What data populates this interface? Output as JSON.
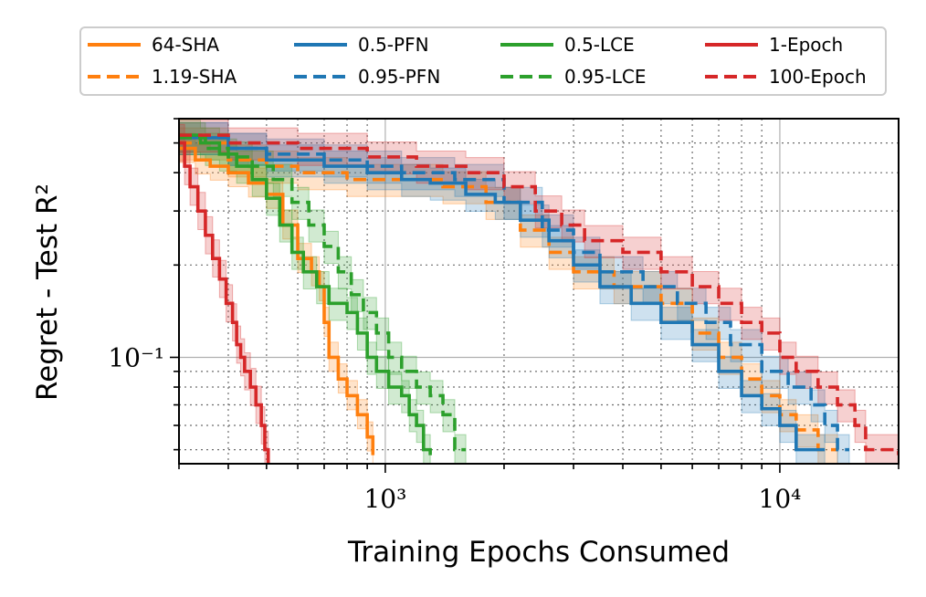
{
  "chart_data": {
    "type": "line",
    "xscale": "log",
    "yscale": "log",
    "xlabel": "Training Epochs Consumed",
    "ylabel": "Regret - Test R²",
    "xlim": [
      300,
      20000
    ],
    "ylim": [
      0.045,
      0.6
    ],
    "x_ticks": [
      {
        "value": 1000,
        "label": "10³"
      },
      {
        "value": 10000,
        "label": "10⁴"
      }
    ],
    "y_ticks": [
      {
        "value": 0.1,
        "label": "10⁻¹"
      }
    ],
    "legend": {
      "columns": 4,
      "placement": "top-center-outside"
    },
    "series": [
      {
        "name": "64-SHA",
        "color": "#ff7f0e",
        "dash": "solid",
        "points": [
          [
            300,
            0.48
          ],
          [
            330,
            0.44
          ],
          [
            360,
            0.42
          ],
          [
            400,
            0.4
          ],
          [
            450,
            0.37
          ],
          [
            500,
            0.34
          ],
          [
            550,
            0.27
          ],
          [
            600,
            0.21
          ],
          [
            650,
            0.19
          ],
          [
            680,
            0.17
          ],
          [
            700,
            0.13
          ],
          [
            720,
            0.1
          ],
          [
            760,
            0.085
          ],
          [
            800,
            0.075
          ],
          [
            850,
            0.065
          ],
          [
            900,
            0.055
          ],
          [
            930,
            0.048
          ]
        ],
        "band": [
          1.12,
          0.9
        ]
      },
      {
        "name": "1.19-SHA",
        "color": "#ff7f0e",
        "dash": "dashed",
        "points": [
          [
            300,
            0.5
          ],
          [
            400,
            0.44
          ],
          [
            500,
            0.42
          ],
          [
            600,
            0.4
          ],
          [
            800,
            0.38
          ],
          [
            1000,
            0.38
          ],
          [
            1400,
            0.36
          ],
          [
            1800,
            0.32
          ],
          [
            2200,
            0.26
          ],
          [
            2600,
            0.22
          ],
          [
            3000,
            0.19
          ],
          [
            3800,
            0.17
          ],
          [
            5000,
            0.15
          ],
          [
            6000,
            0.12
          ],
          [
            7000,
            0.1
          ],
          [
            8000,
            0.085
          ],
          [
            9000,
            0.075
          ],
          [
            10000,
            0.065
          ],
          [
            11000,
            0.058
          ],
          [
            12500,
            0.05
          ],
          [
            14000,
            0.05
          ]
        ],
        "band": [
          1.12,
          0.88
        ]
      },
      {
        "name": "0.5-PFN",
        "color": "#1f77b4",
        "dash": "solid",
        "points": [
          [
            300,
            0.52
          ],
          [
            400,
            0.48
          ],
          [
            500,
            0.44
          ],
          [
            700,
            0.42
          ],
          [
            900,
            0.4
          ],
          [
            1100,
            0.38
          ],
          [
            1300,
            0.37
          ],
          [
            1600,
            0.34
          ],
          [
            1900,
            0.32
          ],
          [
            2200,
            0.28
          ],
          [
            2600,
            0.24
          ],
          [
            3000,
            0.2
          ],
          [
            3500,
            0.17
          ],
          [
            4200,
            0.15
          ],
          [
            5000,
            0.13
          ],
          [
            6000,
            0.11
          ],
          [
            7000,
            0.09
          ],
          [
            8000,
            0.075
          ],
          [
            9000,
            0.068
          ],
          [
            10000,
            0.06
          ],
          [
            11000,
            0.05
          ],
          [
            13000,
            0.05
          ]
        ],
        "band": [
          1.12,
          0.88
        ]
      },
      {
        "name": "0.95-PFN",
        "color": "#1f77b4",
        "dash": "dashed",
        "points": [
          [
            300,
            0.52
          ],
          [
            400,
            0.48
          ],
          [
            500,
            0.46
          ],
          [
            700,
            0.44
          ],
          [
            900,
            0.42
          ],
          [
            1100,
            0.4
          ],
          [
            1500,
            0.38
          ],
          [
            2000,
            0.32
          ],
          [
            2500,
            0.26
          ],
          [
            3000,
            0.22
          ],
          [
            3500,
            0.19
          ],
          [
            4500,
            0.17
          ],
          [
            5500,
            0.15
          ],
          [
            6500,
            0.13
          ],
          [
            7500,
            0.11
          ],
          [
            9000,
            0.09
          ],
          [
            10500,
            0.08
          ],
          [
            12000,
            0.07
          ],
          [
            13000,
            0.06
          ],
          [
            14000,
            0.05
          ],
          [
            15000,
            0.05
          ]
        ],
        "band": [
          1.12,
          0.88
        ]
      },
      {
        "name": "0.5-LCE",
        "color": "#2ca02c",
        "dash": "solid",
        "points": [
          [
            300,
            0.53
          ],
          [
            340,
            0.5
          ],
          [
            380,
            0.46
          ],
          [
            420,
            0.42
          ],
          [
            460,
            0.38
          ],
          [
            500,
            0.33
          ],
          [
            540,
            0.27
          ],
          [
            580,
            0.22
          ],
          [
            620,
            0.19
          ],
          [
            670,
            0.17
          ],
          [
            720,
            0.15
          ],
          [
            800,
            0.14
          ],
          [
            850,
            0.12
          ],
          [
            900,
            0.1
          ],
          [
            950,
            0.09
          ],
          [
            1020,
            0.08
          ],
          [
            1100,
            0.075
          ],
          [
            1150,
            0.065
          ],
          [
            1200,
            0.06
          ],
          [
            1250,
            0.05
          ],
          [
            1300,
            0.048
          ]
        ],
        "band": [
          1.12,
          0.88
        ]
      },
      {
        "name": "0.95-LCE",
        "color": "#2ca02c",
        "dash": "dashed",
        "points": [
          [
            300,
            0.52
          ],
          [
            350,
            0.48
          ],
          [
            400,
            0.45
          ],
          [
            460,
            0.42
          ],
          [
            520,
            0.38
          ],
          [
            580,
            0.32
          ],
          [
            640,
            0.27
          ],
          [
            700,
            0.23
          ],
          [
            760,
            0.19
          ],
          [
            820,
            0.16
          ],
          [
            880,
            0.14
          ],
          [
            950,
            0.12
          ],
          [
            1020,
            0.1
          ],
          [
            1100,
            0.09
          ],
          [
            1200,
            0.08
          ],
          [
            1300,
            0.075
          ],
          [
            1400,
            0.065
          ],
          [
            1500,
            0.05
          ],
          [
            1600,
            0.05
          ]
        ],
        "band": [
          1.12,
          0.88
        ]
      },
      {
        "name": "1-Epoch",
        "color": "#d62728",
        "dash": "solid",
        "points": [
          [
            300,
            0.5
          ],
          [
            310,
            0.42
          ],
          [
            320,
            0.36
          ],
          [
            335,
            0.3
          ],
          [
            350,
            0.25
          ],
          [
            365,
            0.21
          ],
          [
            380,
            0.18
          ],
          [
            395,
            0.15
          ],
          [
            410,
            0.13
          ],
          [
            420,
            0.11
          ],
          [
            430,
            0.1
          ],
          [
            440,
            0.09
          ],
          [
            455,
            0.08
          ],
          [
            470,
            0.07
          ],
          [
            485,
            0.06
          ],
          [
            495,
            0.05
          ],
          [
            505,
            0.045
          ]
        ],
        "band": [
          1.15,
          0.87
        ]
      },
      {
        "name": "100-Epoch",
        "color": "#d62728",
        "dash": "dashed",
        "points": [
          [
            300,
            0.53
          ],
          [
            400,
            0.5
          ],
          [
            600,
            0.48
          ],
          [
            900,
            0.45
          ],
          [
            1200,
            0.42
          ],
          [
            1600,
            0.4
          ],
          [
            2000,
            0.36
          ],
          [
            2400,
            0.3
          ],
          [
            2800,
            0.27
          ],
          [
            3200,
            0.24
          ],
          [
            4000,
            0.22
          ],
          [
            5000,
            0.19
          ],
          [
            6000,
            0.17
          ],
          [
            7000,
            0.15
          ],
          [
            8000,
            0.13
          ],
          [
            9000,
            0.12
          ],
          [
            10000,
            0.1
          ],
          [
            11000,
            0.09
          ],
          [
            12500,
            0.08
          ],
          [
            14000,
            0.07
          ],
          [
            15500,
            0.06
          ],
          [
            16500,
            0.05
          ],
          [
            18000,
            0.05
          ],
          [
            20000,
            0.048
          ]
        ],
        "band": [
          1.12,
          0.88
        ]
      }
    ]
  }
}
